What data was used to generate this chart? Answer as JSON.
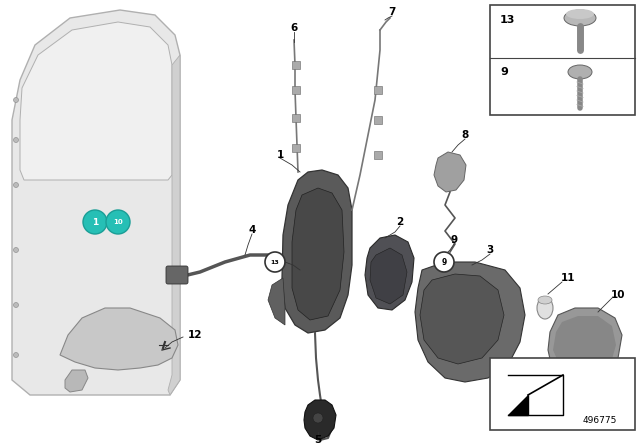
{
  "bg": "#ffffff",
  "fw": 6.4,
  "fh": 4.48,
  "dpi": 100,
  "part_number": "496775",
  "teal": "#26bfb5",
  "door_fill": "#e8e8e8",
  "door_edge": "#b0b0b0",
  "part_fill": "#888888",
  "part_edge": "#555555",
  "dark_fill": "#6a6a6a",
  "dark_edge": "#444444",
  "cable_color": "#777777",
  "label_fs": 7.5,
  "small_fs": 5.5
}
